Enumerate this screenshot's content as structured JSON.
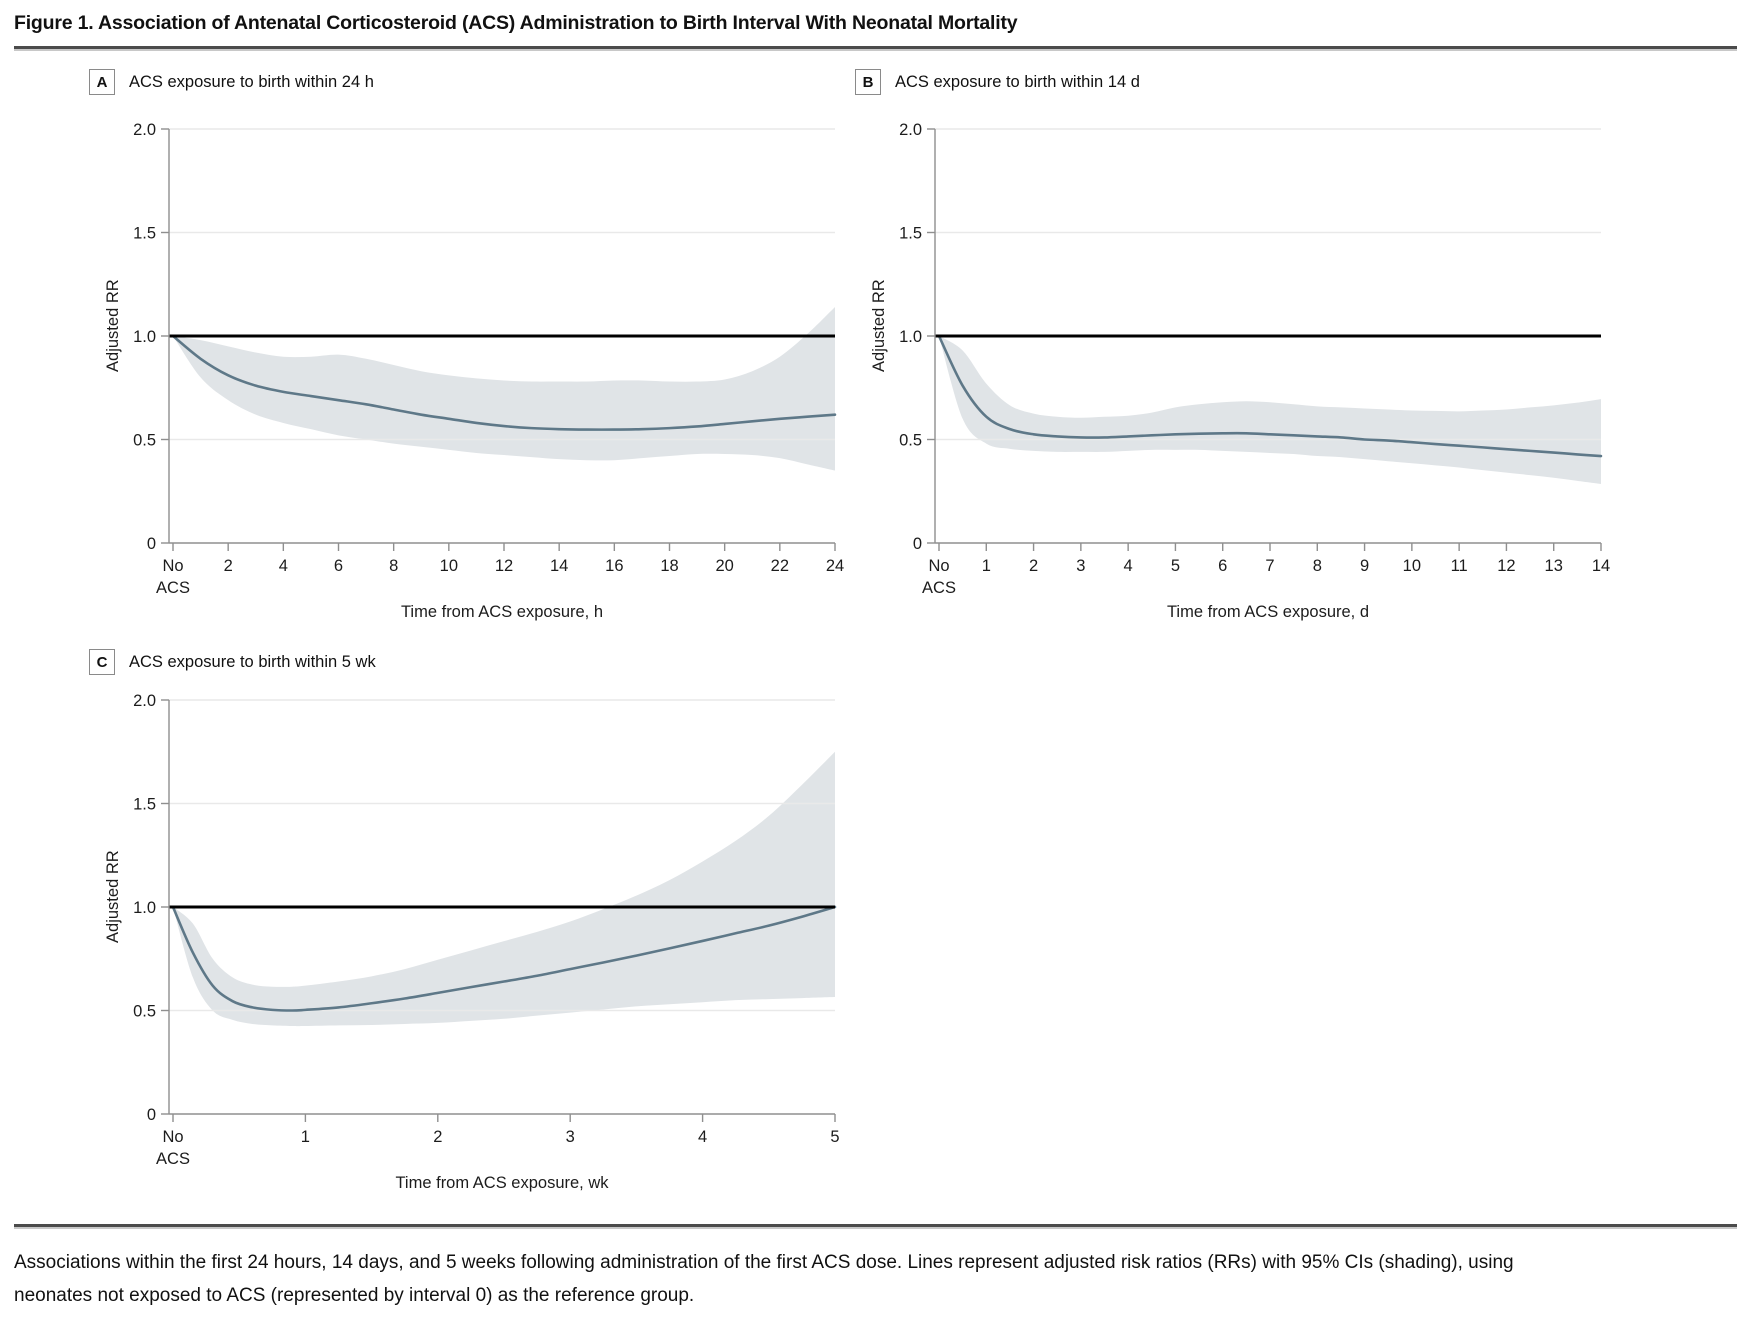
{
  "figure": {
    "title": "Figure 1. Association of Antenatal Corticosteroid (ACS) Administration to Birth Interval With Neonatal Mortality"
  },
  "caption": {
    "text": "Associations within the first 24 hours, 14 days, and 5 weeks following administration of the first ACS dose. Lines represent adjusted risk ratios (RRs) with 95% CIs (shading), using neonates not exposed to ACS (represented by interval 0) as the reference group."
  },
  "colors": {
    "line": "#5e7888",
    "band": "#e0e4e7",
    "grid": "#e9e9e9",
    "reference": "#000000",
    "axis": "#8f8f8f",
    "text": "#1c1c1c"
  },
  "chart_data": [
    {
      "type": "line",
      "panel": "A",
      "title": "ACS exposure to birth within 24 h",
      "xlabel": "Time from ACS exposure, h",
      "ylabel": "Adjusted RR",
      "legend": "adjusted RR with 95% CI shading",
      "grid": true,
      "reference_rr": 1.0,
      "ylim": [
        0,
        2.0
      ],
      "xlim": [
        0,
        24
      ],
      "yticks": [
        {
          "v": 0,
          "l": "0"
        },
        {
          "v": 0.5,
          "l": "0.5"
        },
        {
          "v": 1,
          "l": "1.0"
        },
        {
          "v": 1.5,
          "l": "1.5"
        },
        {
          "v": 2,
          "l": "2.0"
        }
      ],
      "xticks": [
        {
          "v": 0,
          "l": "No",
          "l2": "ACS"
        },
        {
          "v": 2,
          "l": "2"
        },
        {
          "v": 4,
          "l": "4"
        },
        {
          "v": 6,
          "l": "6"
        },
        {
          "v": 8,
          "l": "8"
        },
        {
          "v": 10,
          "l": "10"
        },
        {
          "v": 12,
          "l": "12"
        },
        {
          "v": 14,
          "l": "14"
        },
        {
          "v": 16,
          "l": "16"
        },
        {
          "v": 18,
          "l": "18"
        },
        {
          "v": 20,
          "l": "20"
        },
        {
          "v": 22,
          "l": "22"
        },
        {
          "v": 24,
          "l": "24"
        }
      ],
      "series": [
        {
          "name": "Adjusted RR (95% CI)",
          "points_format": [
            "x",
            "rr",
            "ci_low",
            "ci_high"
          ],
          "points": [
            [
              0,
              1.0,
              1.0,
              1.0
            ],
            [
              1,
              0.89,
              0.8,
              0.98
            ],
            [
              2,
              0.81,
              0.69,
              0.95
            ],
            [
              3,
              0.76,
              0.62,
              0.92
            ],
            [
              4,
              0.73,
              0.58,
              0.9
            ],
            [
              5,
              0.71,
              0.55,
              0.9
            ],
            [
              6,
              0.69,
              0.52,
              0.91
            ],
            [
              7,
              0.67,
              0.5,
              0.89
            ],
            [
              8,
              0.645,
              0.48,
              0.86
            ],
            [
              9,
              0.62,
              0.465,
              0.83
            ],
            [
              10,
              0.6,
              0.45,
              0.81
            ],
            [
              11,
              0.58,
              0.435,
              0.795
            ],
            [
              12,
              0.565,
              0.425,
              0.785
            ],
            [
              13,
              0.555,
              0.415,
              0.78
            ],
            [
              14,
              0.55,
              0.405,
              0.78
            ],
            [
              15,
              0.548,
              0.4,
              0.78
            ],
            [
              16,
              0.548,
              0.4,
              0.785
            ],
            [
              17,
              0.55,
              0.41,
              0.785
            ],
            [
              18,
              0.555,
              0.42,
              0.78
            ],
            [
              19,
              0.563,
              0.43,
              0.78
            ],
            [
              20,
              0.575,
              0.43,
              0.79
            ],
            [
              21,
              0.588,
              0.425,
              0.83
            ],
            [
              22,
              0.6,
              0.41,
              0.9
            ],
            [
              23,
              0.61,
              0.38,
              1.01
            ],
            [
              24,
              0.62,
              0.35,
              1.14
            ]
          ]
        }
      ]
    },
    {
      "type": "line",
      "panel": "B",
      "title": "ACS exposure to birth within 14 d",
      "xlabel": "Time from ACS exposure, d",
      "ylabel": "Adjusted RR",
      "legend": "adjusted RR with 95% CI shading",
      "grid": true,
      "reference_rr": 1.0,
      "ylim": [
        0,
        2.0
      ],
      "xlim": [
        0,
        14
      ],
      "yticks": [
        {
          "v": 0,
          "l": "0"
        },
        {
          "v": 0.5,
          "l": "0.5"
        },
        {
          "v": 1,
          "l": "1.0"
        },
        {
          "v": 1.5,
          "l": "1.5"
        },
        {
          "v": 2,
          "l": "2.0"
        }
      ],
      "xticks": [
        {
          "v": 0,
          "l": "No",
          "l2": "ACS"
        },
        {
          "v": 1,
          "l": "1"
        },
        {
          "v": 2,
          "l": "2"
        },
        {
          "v": 3,
          "l": "3"
        },
        {
          "v": 4,
          "l": "4"
        },
        {
          "v": 5,
          "l": "5"
        },
        {
          "v": 6,
          "l": "6"
        },
        {
          "v": 7,
          "l": "7"
        },
        {
          "v": 8,
          "l": "8"
        },
        {
          "v": 9,
          "l": "9"
        },
        {
          "v": 10,
          "l": "10"
        },
        {
          "v": 11,
          "l": "11"
        },
        {
          "v": 12,
          "l": "12"
        },
        {
          "v": 13,
          "l": "13"
        },
        {
          "v": 14,
          "l": "14"
        }
      ],
      "series": [
        {
          "name": "Adjusted RR (95% CI)",
          "points_format": [
            "x",
            "rr",
            "ci_low",
            "ci_high"
          ],
          "points": [
            [
              0,
              1.0,
              1.0,
              1.0
            ],
            [
              0.5,
              0.76,
              0.6,
              0.93
            ],
            [
              1,
              0.61,
              0.48,
              0.77
            ],
            [
              1.5,
              0.55,
              0.455,
              0.665
            ],
            [
              2,
              0.525,
              0.445,
              0.625
            ],
            [
              2.5,
              0.515,
              0.44,
              0.61
            ],
            [
              3,
              0.51,
              0.44,
              0.605
            ],
            [
              3.5,
              0.51,
              0.44,
              0.61
            ],
            [
              4,
              0.515,
              0.445,
              0.615
            ],
            [
              4.5,
              0.52,
              0.45,
              0.63
            ],
            [
              5,
              0.525,
              0.45,
              0.655
            ],
            [
              5.5,
              0.528,
              0.45,
              0.67
            ],
            [
              6,
              0.53,
              0.445,
              0.68
            ],
            [
              6.5,
              0.53,
              0.44,
              0.685
            ],
            [
              7,
              0.525,
              0.435,
              0.68
            ],
            [
              7.5,
              0.52,
              0.43,
              0.67
            ],
            [
              8,
              0.515,
              0.42,
              0.66
            ],
            [
              8.5,
              0.51,
              0.415,
              0.655
            ],
            [
              9,
              0.5,
              0.405,
              0.65
            ],
            [
              9.5,
              0.495,
              0.395,
              0.645
            ],
            [
              10,
              0.487,
              0.385,
              0.64
            ],
            [
              10.5,
              0.478,
              0.375,
              0.638
            ],
            [
              11,
              0.47,
              0.365,
              0.636
            ],
            [
              11.5,
              0.462,
              0.352,
              0.64
            ],
            [
              12,
              0.453,
              0.34,
              0.645
            ],
            [
              12.5,
              0.445,
              0.328,
              0.655
            ],
            [
              13,
              0.437,
              0.315,
              0.665
            ],
            [
              13.5,
              0.428,
              0.3,
              0.678
            ],
            [
              14,
              0.42,
              0.285,
              0.695
            ]
          ]
        }
      ]
    },
    {
      "type": "line",
      "panel": "C",
      "title": "ACS exposure to birth within 5 wk",
      "xlabel": "Time from ACS exposure, wk",
      "ylabel": "Adjusted RR",
      "legend": "adjusted RR with 95% CI shading",
      "grid": true,
      "reference_rr": 1.0,
      "ylim": [
        0,
        2.0
      ],
      "xlim": [
        0,
        5
      ],
      "yticks": [
        {
          "v": 0,
          "l": "0"
        },
        {
          "v": 0.5,
          "l": "0.5"
        },
        {
          "v": 1,
          "l": "1.0"
        },
        {
          "v": 1.5,
          "l": "1.5"
        },
        {
          "v": 2,
          "l": "2.0"
        }
      ],
      "xticks": [
        {
          "v": 0,
          "l": "No",
          "l2": "ACS"
        },
        {
          "v": 1,
          "l": "1"
        },
        {
          "v": 2,
          "l": "2"
        },
        {
          "v": 3,
          "l": "3"
        },
        {
          "v": 4,
          "l": "4"
        },
        {
          "v": 5,
          "l": "5"
        }
      ],
      "series": [
        {
          "name": "Adjusted RR (95% CI)",
          "points_format": [
            "x",
            "rr",
            "ci_low",
            "ci_high"
          ],
          "points": [
            [
              0,
              1.0,
              1.0,
              1.0
            ],
            [
              0.15,
              0.78,
              0.66,
              0.92
            ],
            [
              0.3,
              0.62,
              0.5,
              0.75
            ],
            [
              0.45,
              0.545,
              0.455,
              0.66
            ],
            [
              0.6,
              0.515,
              0.435,
              0.625
            ],
            [
              0.75,
              0.503,
              0.428,
              0.615
            ],
            [
              0.9,
              0.5,
              0.425,
              0.615
            ],
            [
              1.0,
              0.503,
              0.425,
              0.62
            ],
            [
              1.25,
              0.515,
              0.428,
              0.64
            ],
            [
              1.5,
              0.535,
              0.43,
              0.665
            ],
            [
              1.75,
              0.558,
              0.435,
              0.7
            ],
            [
              2.0,
              0.585,
              0.44,
              0.745
            ],
            [
              2.25,
              0.613,
              0.45,
              0.79
            ],
            [
              2.5,
              0.64,
              0.46,
              0.835
            ],
            [
              2.75,
              0.668,
              0.475,
              0.88
            ],
            [
              3.0,
              0.7,
              0.49,
              0.93
            ],
            [
              3.25,
              0.732,
              0.505,
              0.99
            ],
            [
              3.5,
              0.765,
              0.52,
              1.055
            ],
            [
              3.75,
              0.8,
              0.53,
              1.13
            ],
            [
              4.0,
              0.836,
              0.54,
              1.22
            ],
            [
              4.25,
              0.873,
              0.55,
              1.32
            ],
            [
              4.5,
              0.91,
              0.555,
              1.44
            ],
            [
              4.75,
              0.953,
              0.56,
              1.59
            ],
            [
              5.0,
              1.0,
              0.565,
              1.75
            ]
          ]
        }
      ]
    }
  ]
}
